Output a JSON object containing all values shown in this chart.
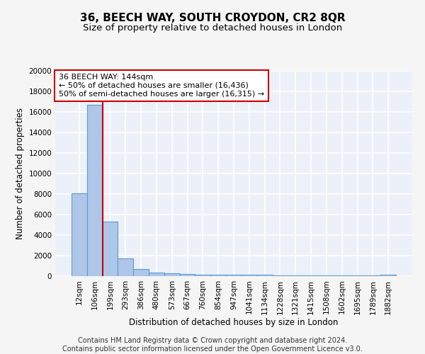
{
  "title": "36, BEECH WAY, SOUTH CROYDON, CR2 8QR",
  "subtitle": "Size of property relative to detached houses in London",
  "xlabel": "Distribution of detached houses by size in London",
  "ylabel": "Number of detached properties",
  "categories": [
    "12sqm",
    "106sqm",
    "199sqm",
    "293sqm",
    "386sqm",
    "480sqm",
    "573sqm",
    "667sqm",
    "760sqm",
    "854sqm",
    "947sqm",
    "1041sqm",
    "1134sqm",
    "1228sqm",
    "1321sqm",
    "1415sqm",
    "1508sqm",
    "1602sqm",
    "1695sqm",
    "1789sqm",
    "1882sqm"
  ],
  "values": [
    8100,
    16700,
    5300,
    1750,
    700,
    350,
    280,
    220,
    170,
    150,
    130,
    115,
    105,
    95,
    88,
    82,
    77,
    73,
    70,
    68,
    165
  ],
  "bar_color": "#aec6e8",
  "bar_edge_color": "#5b9bd5",
  "vline_x": 1.5,
  "vline_color": "#cc0000",
  "annotation_line1": "36 BEECH WAY: 144sqm",
  "annotation_line2": "← 50% of detached houses are smaller (16,436)",
  "annotation_line3": "50% of semi-detached houses are larger (16,315) →",
  "annotation_box_color": "#ffffff",
  "annotation_box_edge": "#cc0000",
  "ylim": [
    0,
    20000
  ],
  "yticks": [
    0,
    2000,
    4000,
    6000,
    8000,
    10000,
    12000,
    14000,
    16000,
    18000,
    20000
  ],
  "bg_color": "#ecf0f8",
  "grid_color": "#ffffff",
  "footer_line1": "Contains HM Land Registry data © Crown copyright and database right 2024.",
  "footer_line2": "Contains public sector information licensed under the Open Government Licence v3.0.",
  "title_fontsize": 11,
  "subtitle_fontsize": 9.5,
  "axis_label_fontsize": 8.5,
  "tick_fontsize": 7.5,
  "annotation_fontsize": 8,
  "footer_fontsize": 7
}
